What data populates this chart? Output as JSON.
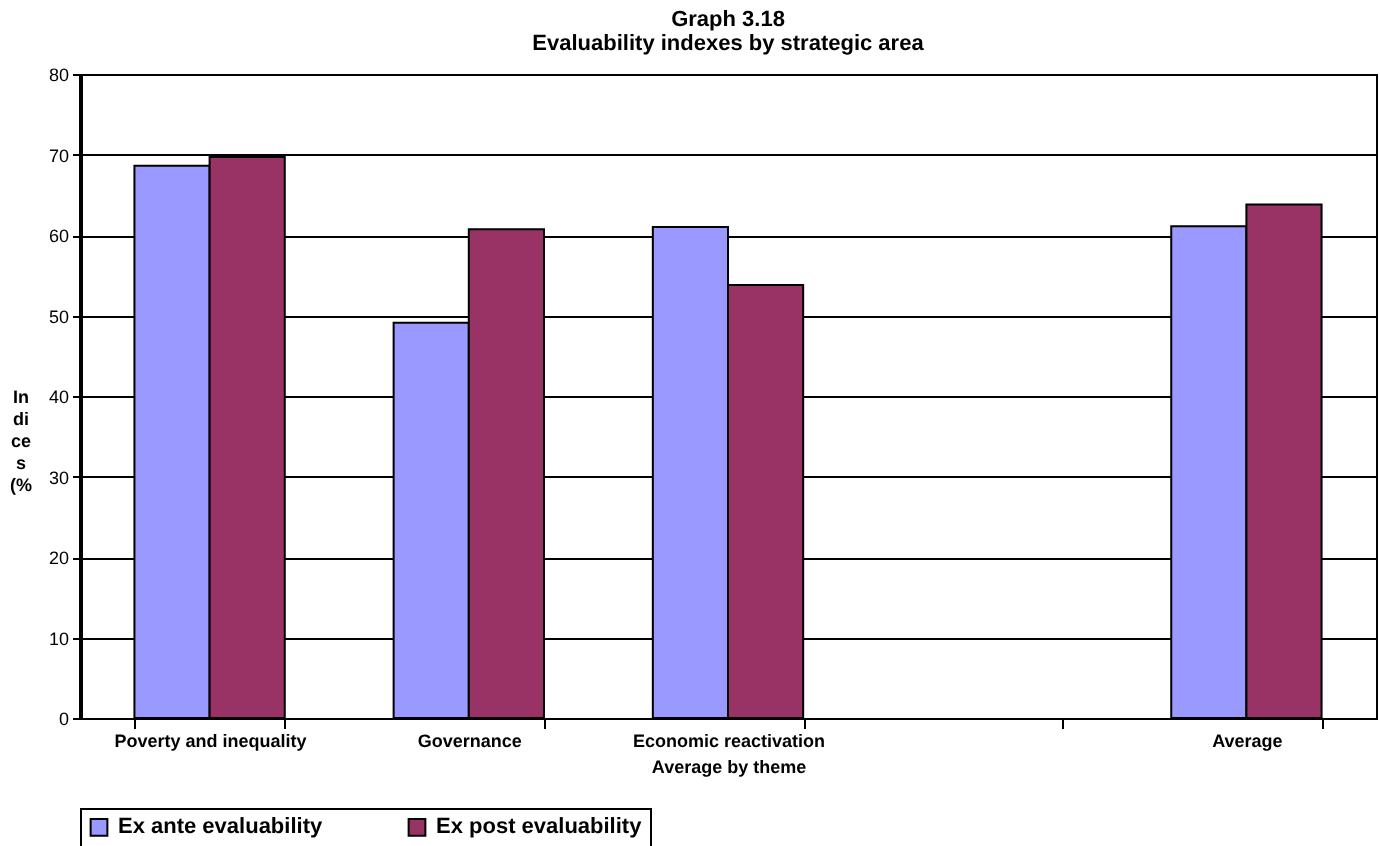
{
  "chart_data": {
    "type": "bar",
    "title": "Graph 3.18",
    "subtitle": "Evaluability indexes by strategic area",
    "xlabel": "Average by theme",
    "ylabel": "Indices (%",
    "categories": [
      "Poverty and inequality",
      "Governance",
      "Economic reactivation",
      null,
      "Average"
    ],
    "series": [
      {
        "name": "Ex ante evaluability",
        "color": "#9999ff",
        "values": [
          68.6,
          49.1,
          61.0,
          null,
          61.1
        ]
      },
      {
        "name": "Ex post evaluability",
        "color": "#993366",
        "values": [
          69.7,
          60.7,
          53.8,
          null,
          63.8
        ]
      }
    ],
    "ylim": [
      0,
      80
    ],
    "yticks": [
      0,
      10,
      20,
      30,
      40,
      50,
      60,
      70,
      80
    ],
    "grid": "y",
    "legend": "bottom"
  }
}
